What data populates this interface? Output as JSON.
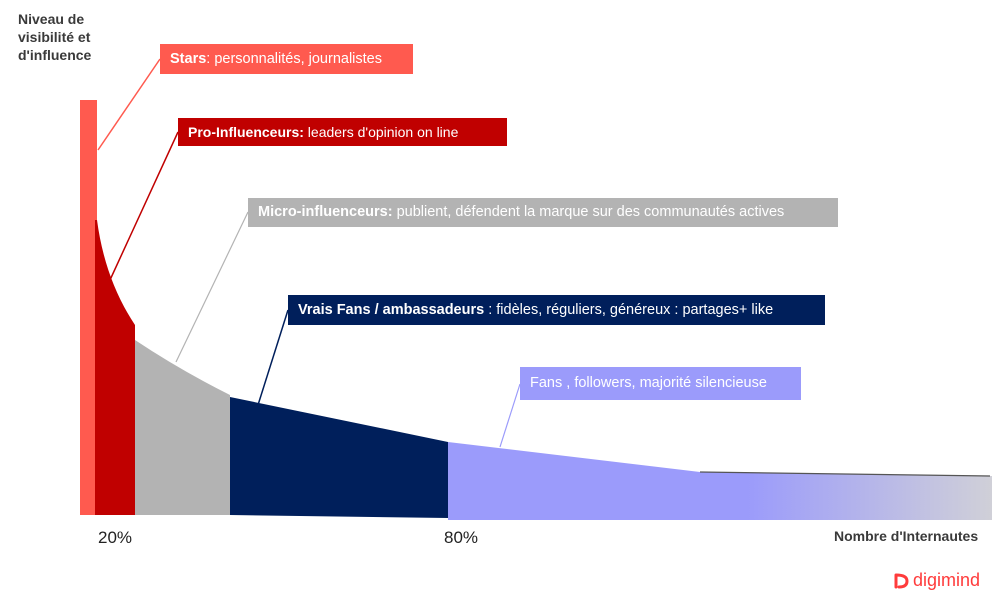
{
  "y_axis_label": "Niveau de visibilité et d'influence",
  "x_axis_label": "Nombre d'Internautes",
  "markers": [
    "20%",
    "80%"
  ],
  "segments": [
    {
      "id": "stars",
      "title": "Stars",
      "sep": ": ",
      "desc": "personnalités, journalistes",
      "color": "#ff5a4f"
    },
    {
      "id": "pro",
      "title": "Pro-Influenceurs:",
      "sep": " ",
      "desc": "leaders d'opinion on line",
      "color": "#c00000"
    },
    {
      "id": "micro",
      "title": "Micro-influenceurs:",
      "sep": " ",
      "desc": "publient, défendent la marque sur des communautés actives",
      "color": "#b3b3b3"
    },
    {
      "id": "fans",
      "title": "Vrais Fans / ambassadeurs",
      "sep": " : ",
      "desc": "fidèles, réguliers, généreux : partages+ like",
      "color": "#001f5b"
    },
    {
      "id": "followers",
      "title": "",
      "sep": "",
      "desc": "Fans , followers, majorité silencieuse",
      "color": "#9b9bfb"
    }
  ],
  "brand": {
    "name": "digimind",
    "color": "#ff3b3b"
  }
}
